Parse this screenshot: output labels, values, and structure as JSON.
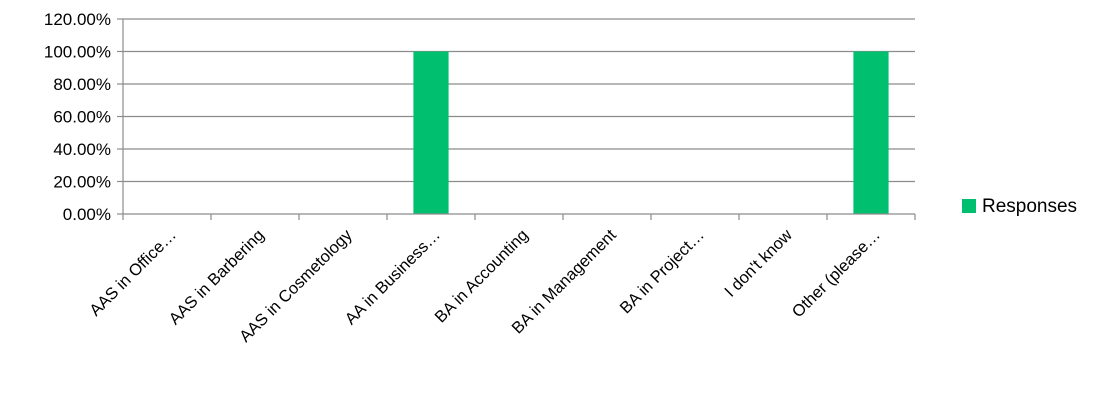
{
  "chart_data": {
    "type": "bar",
    "categories": [
      "AAS in Office…",
      "AAS in Barbering",
      "AAS in Cosmetology",
      "AA in Business…",
      "BA in Accounting",
      "BA in Management",
      "BA in Project…",
      "I don't know",
      "Other (please…"
    ],
    "series": [
      {
        "name": "Responses",
        "values": [
          0,
          0,
          0,
          100,
          0,
          0,
          0,
          0,
          100
        ],
        "color": "#00C070"
      }
    ],
    "ylim": [
      0,
      120
    ],
    "yticks": [
      "0.00%",
      "20.00%",
      "40.00%",
      "60.00%",
      "80.00%",
      "100.00%",
      "120.00%"
    ],
    "grid": true,
    "legend": "right"
  }
}
